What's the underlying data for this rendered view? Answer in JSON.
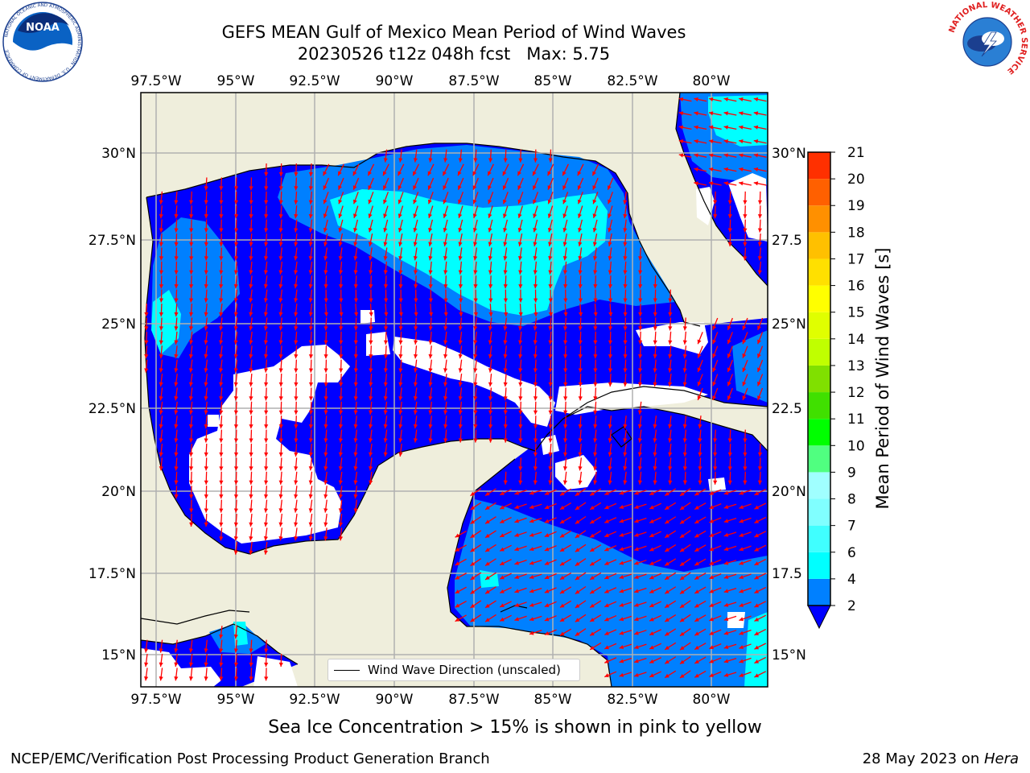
{
  "header": {
    "title_line1": "GEFS MEAN Gulf of Mexico Mean Period of Wind Waves",
    "title_line2": "20230526 t12z 048h fcst   Max: 5.75"
  },
  "logos": {
    "noaa": "NOAA",
    "noaa_ring": "NATIONAL OCEANIC AND ATMOSPHERIC ADMINISTRATION · U.S. DEPARTMENT OF COMMERCE",
    "nws_ring": "NATIONAL WEATHER SERVICE"
  },
  "map": {
    "lon_labels": [
      "97.5°W",
      "95°W",
      "92.5°W",
      "90°W",
      "87.5°W",
      "85°W",
      "82.5°W",
      "80°W"
    ],
    "lat_labels_left": [
      "30°N",
      "27.5°N",
      "25°N",
      "22.5°N",
      "20°N",
      "17.5°N",
      "15°N"
    ],
    "lat_labels_right": [
      "30°N",
      "27.5",
      "25°N",
      "22.5",
      "20°N",
      "17.5",
      "15°N"
    ],
    "legend_label": "Wind Wave Direction (unscaled)",
    "colors": {
      "land": "#efeedc",
      "coast": "#000000",
      "grid": "#b0b0b0",
      "arrow": "#ff0000"
    }
  },
  "colorbar": {
    "label": "Mean Period of Wind Waves [s]",
    "ticks": [
      "2",
      "4",
      "6",
      "7",
      "8",
      "9",
      "10",
      "11",
      "12",
      "13",
      "14",
      "15",
      "16",
      "17",
      "18",
      "19",
      "20",
      "21"
    ],
    "colors": [
      "#0080ff",
      "#00ffff",
      "#40ffff",
      "#80ffff",
      "#a0ffff",
      "#50ff80",
      "#00ff00",
      "#40e000",
      "#80e000",
      "#c0ff00",
      "#e0ff00",
      "#ffff00",
      "#ffe000",
      "#ffc000",
      "#ff9000",
      "#ff6000",
      "#ff3000",
      "#ff0000"
    ],
    "under_color": "#0000ff"
  },
  "chart_data": {
    "type": "heatmap",
    "field": "Mean Period of Wind Waves",
    "units": "s",
    "max_value": 5.75,
    "lon_range": [
      -98.5,
      -78.8
    ],
    "lat_range": [
      14.0,
      32.0
    ],
    "category_bins": [
      {
        "range": "<2",
        "color": "#0000ff"
      },
      {
        "range": "2-4",
        "color": "#0080ff"
      },
      {
        "range": "4-6",
        "color": "#00ffff"
      }
    ]
  },
  "captions": {
    "sea_ice": "Sea Ice Concentration > 15% is shown in pink to yellow",
    "left_footer": "NCEP/EMC/Verification Post Processing Product Generation Branch",
    "right_footer_prefix": "28 May 2023 on ",
    "right_footer_host": "Hera"
  }
}
